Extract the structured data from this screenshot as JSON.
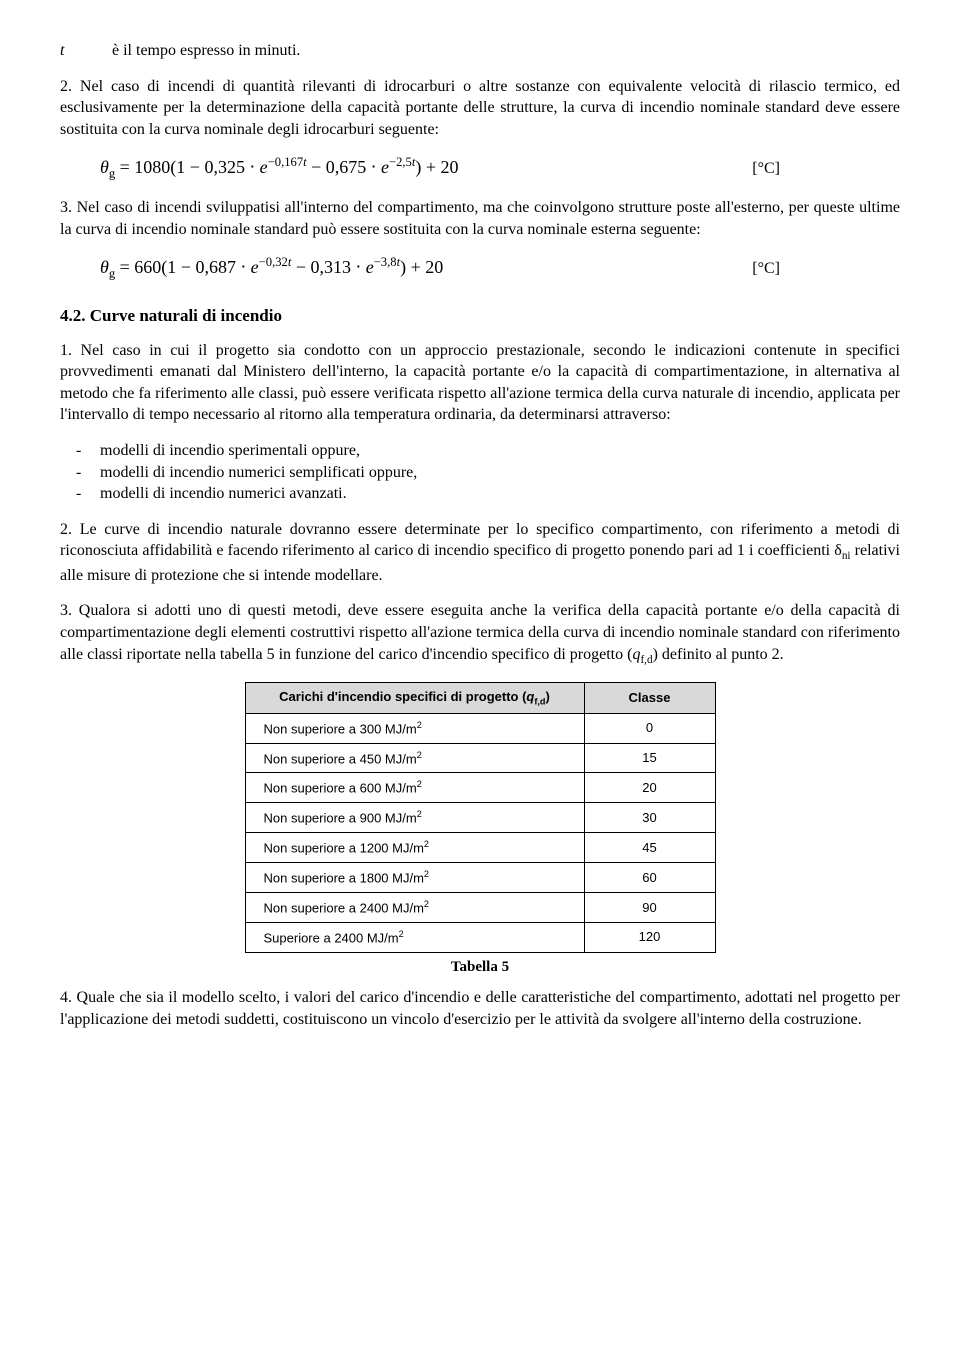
{
  "line_t": {
    "label": "t",
    "text": "è il tempo espresso in minuti."
  },
  "p2": "2. Nel caso di incendi di quantità rilevanti di idrocarburi o altre sostanze con equivalente velocità di rilascio termico, ed esclusivamente per la determinazione della capacità portante delle strutture, la curva di incendio nominale standard deve essere sostituita con la curva nominale degli idrocarburi seguente:",
  "formula1": {
    "theta": "θ",
    "sub_g": "g",
    "eq": " = 1080",
    "open": "(",
    "one": "1 − 0,325 ⋅ ",
    "e1": "e",
    "exp1": "−0,167",
    "tvar1": "t",
    "mid": " − 0,675 ⋅ ",
    "e2": "e",
    "exp2": "−2,5",
    "tvar2": "t",
    "close": ")",
    "plus": " + 20",
    "unit": "[°C]"
  },
  "p3": "3. Nel caso di incendi sviluppatisi all'interno del compartimento, ma che coinvolgono strutture poste all'esterno, per queste ultime la curva di incendio nominale standard può essere sostituita con la curva nominale esterna seguente:",
  "formula2": {
    "theta": "θ",
    "sub_g": "g",
    "eq": " = 660",
    "open": "(",
    "one": "1 − 0,687 ⋅ ",
    "e1": "e",
    "exp1": "−0,32",
    "tvar1": "t",
    "mid": " − 0,313 ⋅ ",
    "e2": "e",
    "exp2": "−3,8",
    "tvar2": "t",
    "close": ")",
    "plus": " + 20",
    "unit": "[°C]"
  },
  "sec42": "4.2. Curve naturali di incendio",
  "p42_1": "1. Nel caso in cui il progetto sia condotto con un approccio prestazionale, secondo le indicazioni contenute in specifici provvedimenti emanati dal Ministero dell'interno, la capacità portante e/o la capacità di compartimentazione, in alternativa al metodo che fa riferimento alle classi, può essere verificata rispetto all'azione termica della curva naturale di incendio, applicata per l'intervallo di tempo necessario al ritorno alla temperatura ordinaria, da determinarsi attraverso:",
  "bullets": [
    "modelli di incendio sperimentali oppure,",
    "modelli di incendio numerici semplificati oppure,",
    "modelli di incendio numerici avanzati."
  ],
  "p42_2a": "2. Le curve di incendio naturale dovranno essere determinate per lo specifico compartimento, con riferimento a metodi di riconosciuta affidabilità e facendo riferimento al carico di incendio specifico di progetto ponendo pari ad 1 i coefficienti ",
  "p42_2_delta": "δ",
  "p42_2_sub": "ni",
  "p42_2b": " relativi alle misure di protezione che si intende modellare.",
  "p42_3a": "3. Qualora si adotti uno di questi metodi, deve essere eseguita anche la verifica della capacità portante e/o della capacità di compartimentazione degli elementi costruttivi rispetto all'azione termica della curva di incendio nominale standard con riferimento alle classi riportate nella tabella 5 in funzione del carico d'incendio specifico di progetto (",
  "p42_3_q": "q",
  "p42_3_sub": "f,d",
  "p42_3b": ") definito al punto 2.",
  "table": {
    "header_c1_a": "Carichi d'incendio specifici di progetto (",
    "header_c1_q": "q",
    "header_c1_sub": "f,d",
    "header_c1_b": ")",
    "header_c2": "Classe",
    "rows": [
      {
        "c1": "Non superiore a 300 MJ/m",
        "sup": "2",
        "c2": "0"
      },
      {
        "c1": "Non superiore a 450 MJ/m",
        "sup": "2",
        "c2": "15"
      },
      {
        "c1": "Non superiore a 600 MJ/m",
        "sup": "2",
        "c2": "20"
      },
      {
        "c1": "Non superiore a 900 MJ/m",
        "sup": "2",
        "c2": "30"
      },
      {
        "c1": "Non superiore a 1200 MJ/m",
        "sup": "2",
        "c2": "45"
      },
      {
        "c1": "Non superiore a 1800 MJ/m",
        "sup": "2",
        "c2": "60"
      },
      {
        "c1": "Non superiore a 2400 MJ/m",
        "sup": "2",
        "c2": "90"
      },
      {
        "c1": "Superiore a 2400 MJ/m",
        "sup": "2",
        "c2": "120"
      }
    ],
    "caption": "Tabella 5"
  },
  "p42_4": "4. Quale che sia il modello scelto, i valori del carico d'incendio e delle caratteristiche del compartimento, adottati nel progetto per l'applicazione dei metodi suddetti, costituiscono un vincolo d'esercizio per le attività da svolgere all'interno della costruzione."
}
